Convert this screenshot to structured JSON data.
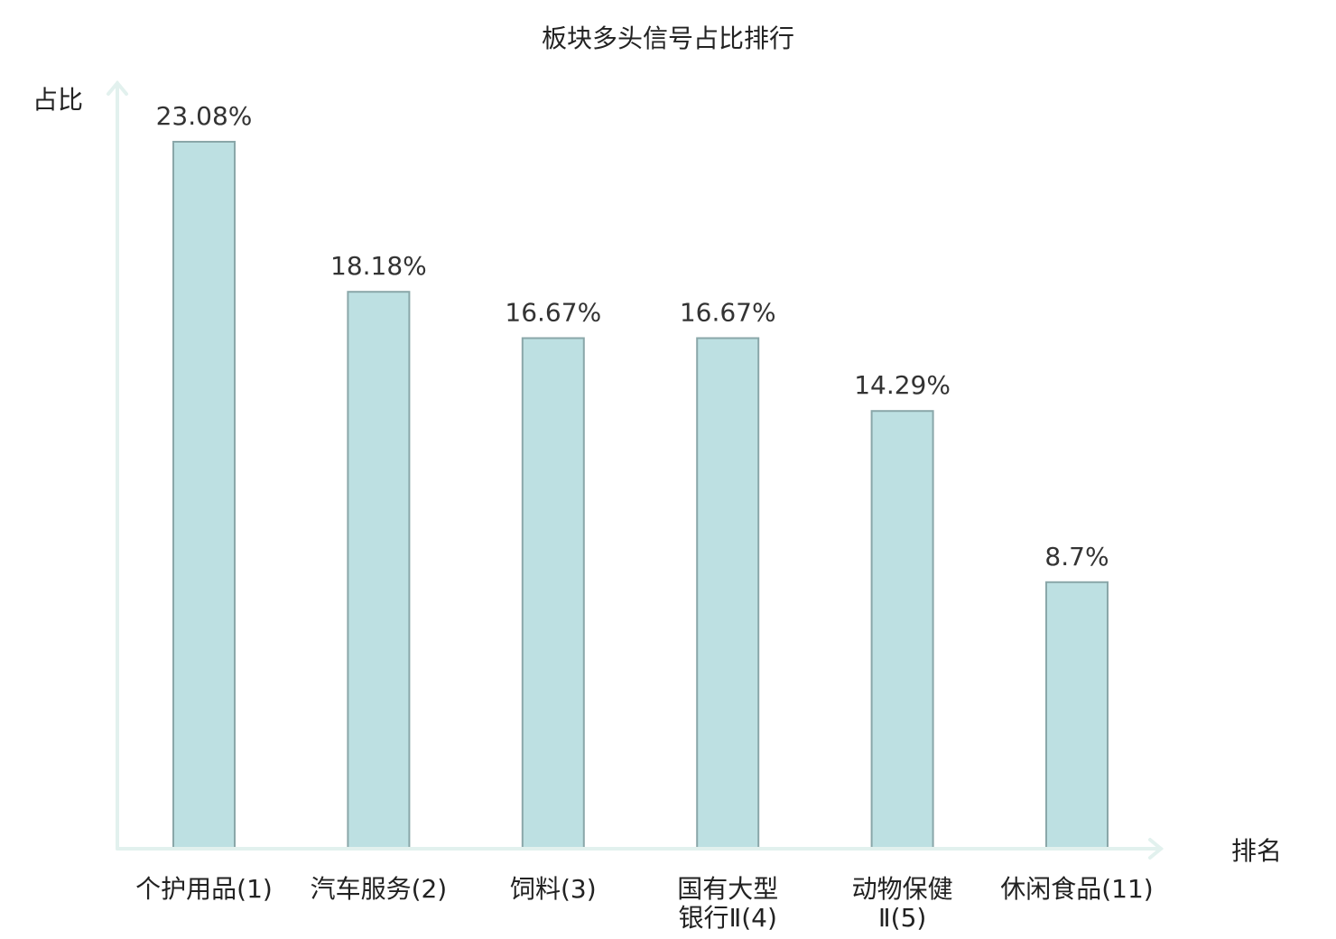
{
  "chart_data": {
    "type": "bar",
    "title": "板块多头信号占比排行",
    "ylabel": "占比",
    "xlabel": "排名",
    "ylim": [
      0,
      25
    ],
    "grid": false,
    "legend": "none",
    "categories": [
      [
        "个护用品(1)"
      ],
      [
        "汽车服务(2)"
      ],
      [
        "饲料(3)"
      ],
      [
        "国有大型",
        "银行Ⅱ(4)"
      ],
      [
        "动物保健",
        "Ⅱ(5)"
      ],
      [
        "休闲食品(11)"
      ]
    ],
    "values": [
      23.08,
      18.18,
      16.67,
      16.67,
      14.29,
      8.7
    ],
    "value_labels": [
      "23.08%",
      "18.18%",
      "16.67%",
      "16.67%",
      "14.29%",
      "8.7%"
    ],
    "highlight_index": 5,
    "colors": {
      "bar_fill": "#bde0e2",
      "bar_stroke": "#8aa7a9",
      "axis": "#e2f1ee",
      "label": "#222222",
      "highlight": "#e01010"
    }
  }
}
